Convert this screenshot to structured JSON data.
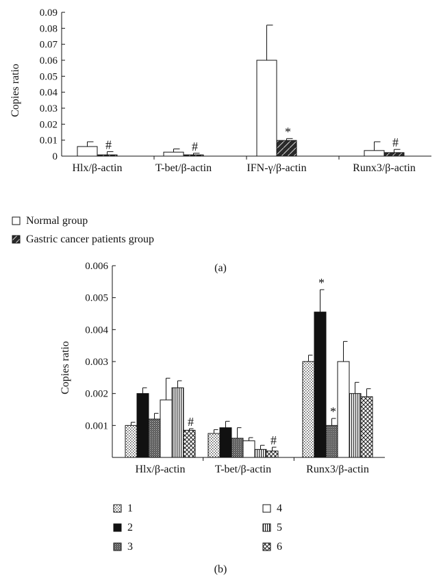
{
  "chart_data": [
    {
      "panel_label": "(a)",
      "type": "bar",
      "ylabel": "Copies ratio",
      "ylim": [
        0,
        0.09
      ],
      "yticks": [
        "0",
        "0.01",
        "0.02",
        "0.03",
        "0.04",
        "0.05",
        "0.06",
        "0.07",
        "0.08",
        "0.09"
      ],
      "categories": [
        "Hlx/β-actin",
        "T-bet/β-actin",
        "IFN-γ/β-actin",
        "Runx3/β-actin"
      ],
      "legend_position": "bottom-left",
      "series": [
        {
          "name": "Normal group",
          "pattern": "white",
          "values": [
            0.006,
            0.0025,
            0.06,
            0.0035
          ],
          "errors": [
            0.003,
            0.002,
            0.022,
            0.0055
          ]
        },
        {
          "name": "Gastric cancer patients group",
          "pattern": "dark-slash",
          "values": [
            0.0008,
            0.0008,
            0.0098,
            0.0022
          ],
          "errors": [
            0.002,
            0.001,
            0.0012,
            0.002
          ]
        }
      ],
      "annotations": [
        {
          "category": 0,
          "series": 1,
          "text": "#"
        },
        {
          "category": 1,
          "series": 1,
          "text": "#"
        },
        {
          "category": 2,
          "series": 1,
          "text": "*"
        },
        {
          "category": 3,
          "series": 1,
          "text": "#"
        }
      ]
    },
    {
      "panel_label": "(b)",
      "type": "bar",
      "ylabel": "Copies ratio",
      "ylim": [
        0,
        0.006
      ],
      "yticks": [
        "0.001",
        "0.002",
        "0.003",
        "0.004",
        "0.005",
        "0.006"
      ],
      "categories": [
        "Hlx/β-actin",
        "T-bet/β-actin",
        "Runx3/β-actin"
      ],
      "legend_position": "bottom",
      "series": [
        {
          "name": "1",
          "pattern": "dots",
          "values": [
            0.001,
            0.00075,
            0.003
          ],
          "errors": [
            0.0001,
            0.00012,
            0.0002
          ]
        },
        {
          "name": "2",
          "pattern": "black",
          "values": [
            0.002,
            0.00093,
            0.00455
          ],
          "errors": [
            0.00018,
            0.0002,
            0.0007
          ]
        },
        {
          "name": "3",
          "pattern": "dense",
          "values": [
            0.0012,
            0.0006,
            0.001
          ],
          "errors": [
            0.00018,
            0.00033,
            0.00022
          ]
        },
        {
          "name": "4",
          "pattern": "white",
          "values": [
            0.0018,
            0.00052,
            0.003
          ],
          "errors": [
            0.00068,
            0.0001,
            0.00063
          ]
        },
        {
          "name": "5",
          "pattern": "vlines",
          "values": [
            0.00218,
            0.00025,
            0.002
          ],
          "errors": [
            0.00022,
            0.00013,
            0.00035
          ]
        },
        {
          "name": "6",
          "pattern": "crosshatch",
          "values": [
            0.00085,
            0.0002,
            0.0019
          ],
          "errors": [
            5e-05,
            0.00012,
            0.00025
          ]
        }
      ],
      "annotations": [
        {
          "category": 0,
          "series": 5,
          "text": "#"
        },
        {
          "category": 1,
          "series": 5,
          "text": "#"
        },
        {
          "category": 2,
          "series": 1,
          "text": "*"
        },
        {
          "category": 2,
          "series": 2,
          "text": "*"
        }
      ]
    }
  ]
}
